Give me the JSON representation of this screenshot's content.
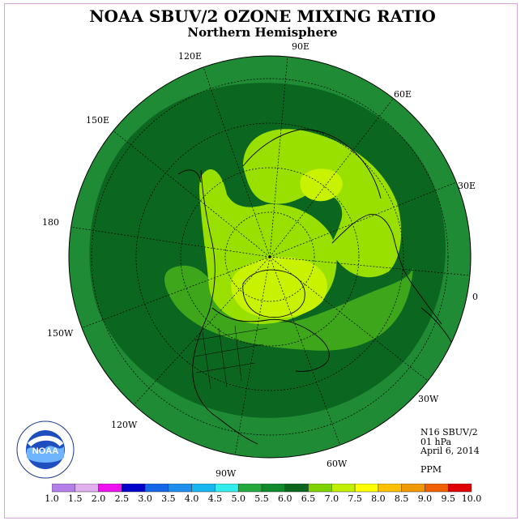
{
  "title": "NOAA SBUV/2 OZONE MIXING RATIO",
  "subtitle": "Northern Hemisphere",
  "longitude_labels": [
    "90E",
    "60E",
    "30E",
    "0",
    "30W",
    "60W",
    "90W",
    "120W",
    "150W",
    "180",
    "150E",
    "120E"
  ],
  "info": {
    "instrument": "N16 SBUV/2",
    "level": "01 hPa",
    "date": "April 6, 2014",
    "units": "PPM"
  },
  "legend": {
    "ticks": [
      "1.0",
      "1.5",
      "2.0",
      "2.5",
      "3.0",
      "3.5",
      "4.0",
      "4.5",
      "5.0",
      "5.5",
      "6.0",
      "6.5",
      "7.0",
      "7.5",
      "8.0",
      "8.5",
      "9.0",
      "9.5",
      "10.0"
    ],
    "colors": [
      "#b57ee8",
      "#e0b0ee",
      "#ee12ee",
      "#0000cc",
      "#1466e6",
      "#1f8fef",
      "#18b6f0",
      "#33ecec",
      "#22a83c",
      "#0d8a2c",
      "#0b6620",
      "#7fd200",
      "#c2ef00",
      "#ffff00",
      "#ffc000",
      "#f09800",
      "#f06000",
      "#e00000",
      "#8b5a3c"
    ]
  },
  "contour_colors": {
    "outer_5_0": "#1f8b35",
    "band_5_5": "#0b6620",
    "band_6_0": "#3ea61a",
    "band_6_5": "#99e000",
    "band_7_0": "#c9f200"
  },
  "logo_text": "NOAA"
}
